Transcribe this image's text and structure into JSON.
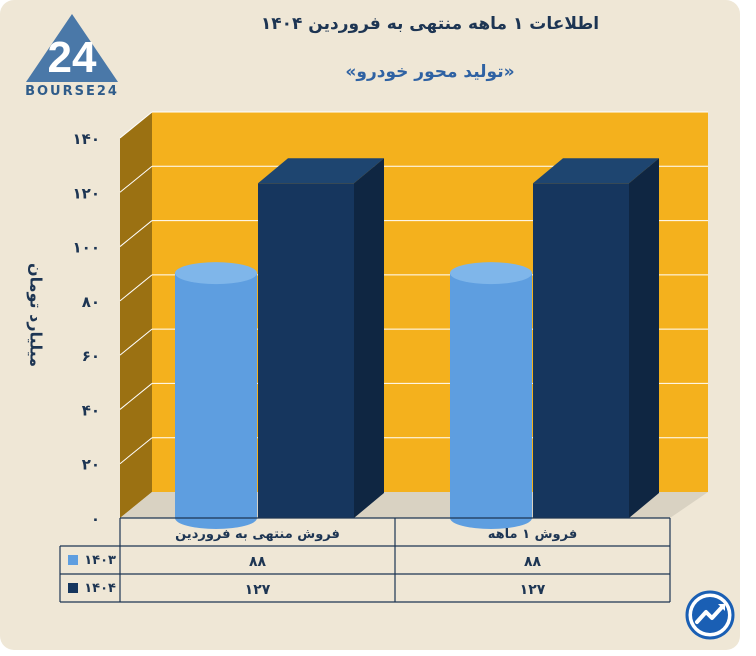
{
  "header": {
    "title": "اطلاعات ۱ ماهه منتهی به فروردین ۱۴۰۴",
    "subtitle": "«تولید محور خودرو»",
    "logo_text": "BOURSE24",
    "logo_number": "24"
  },
  "colors": {
    "background": "#efe7d6",
    "plot_back": "#f4b11d",
    "plot_side": "#9b7112",
    "series_1403": "#5e9ee0",
    "series_1404": "#16365e",
    "text": "#1d3553",
    "accent": "#2f62a3"
  },
  "chart_data": {
    "type": "bar",
    "title": "اطلاعات ۱ ماهه منتهی به فروردین ۱۴۰۴",
    "subtitle": "«تولید محور خودرو»",
    "ylabel": "میلیارد تومان",
    "ylim": [
      0,
      140
    ],
    "yticks": [
      "۰",
      "۲۰",
      "۴۰",
      "۶۰",
      "۸۰",
      "۱۰۰",
      "۱۲۰",
      "۱۴۰"
    ],
    "yvalues": [
      0,
      20,
      40,
      60,
      80,
      100,
      120,
      140
    ],
    "categories": [
      "فروش منتهی به  فروردین",
      "فروش ۱  ماهه"
    ],
    "series": [
      {
        "name": "۱۴۰۳",
        "values": [
          88,
          88
        ],
        "labels": [
          "۸۸",
          "۸۸"
        ],
        "shape": "cylinder"
      },
      {
        "name": "۱۴۰۴",
        "values": [
          127,
          127
        ],
        "labels": [
          "۱۲۷",
          "۱۲۷"
        ],
        "shape": "box"
      }
    ],
    "grid": true,
    "legend": "table-left"
  }
}
